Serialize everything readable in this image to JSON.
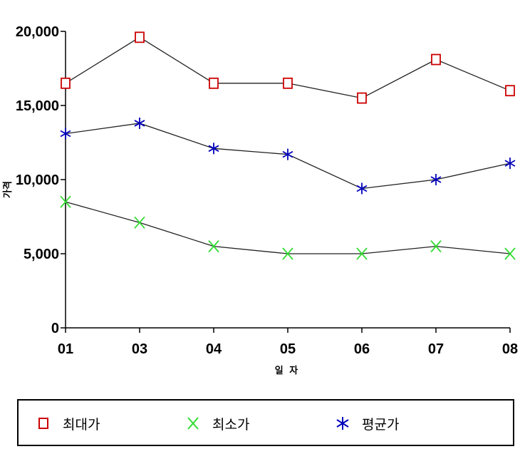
{
  "chart_data": {
    "type": "line",
    "categories": [
      "01",
      "03",
      "04",
      "05",
      "06",
      "07",
      "08"
    ],
    "ylabel": "가격",
    "xlabel": "일 자",
    "ylim": [
      0,
      20000
    ],
    "yticks": [
      "0",
      "5,000",
      "10,000",
      "15,000",
      "20,000"
    ],
    "grid": false,
    "legend_position": "bottom",
    "series": [
      {
        "name": "최대가",
        "marker": "square",
        "color": "#cc0000",
        "values": [
          16500,
          19600,
          16500,
          16500,
          15500,
          18100,
          16000
        ]
      },
      {
        "name": "최소가",
        "marker": "x",
        "color": "#33dd33",
        "values": [
          8500,
          7100,
          5500,
          5000,
          5000,
          5500,
          5000
        ]
      },
      {
        "name": "평균가",
        "marker": "asterisk",
        "color": "#0000bb",
        "values": [
          13100,
          13800,
          12100,
          11700,
          9400,
          10000,
          11100
        ]
      }
    ]
  }
}
